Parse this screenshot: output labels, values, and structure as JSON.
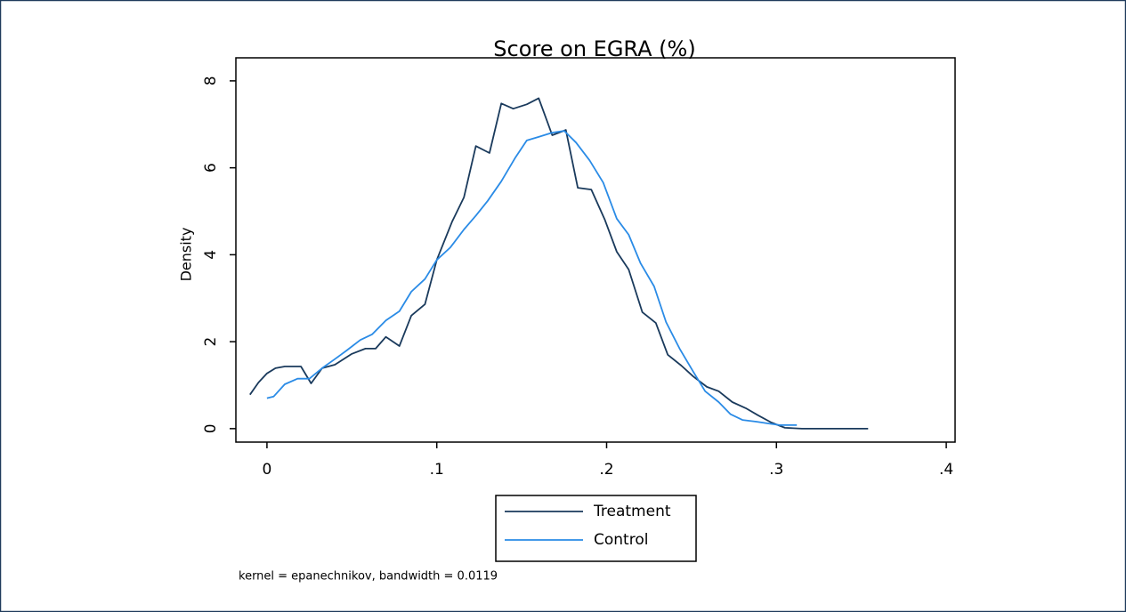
{
  "chart_data": {
    "type": "line",
    "title": "Score on EGRA (%)",
    "ylabel": "Density",
    "note": "kernel = epanechnikov, bandwidth = 0.0119",
    "xlim": [
      -0.0183,
      0.4052
    ],
    "ylim": [
      -0.31,
      8.53
    ],
    "xticks": [
      0,
      {
        "value": 0.1,
        "label": ".1"
      },
      {
        "value": 0.2,
        "label": ".2"
      },
      {
        "value": 0.3,
        "label": ".3"
      },
      {
        "value": 0.4,
        "label": ".4"
      }
    ],
    "yticks": [
      0,
      2,
      4,
      6,
      8
    ],
    "legend": "below",
    "series": [
      {
        "name": "Treatment",
        "color": "#1a3a5c",
        "x": [
          -0.01,
          -0.005,
          0,
          0.005,
          0.0105,
          0.02,
          0.026,
          0.0325,
          0.04,
          0.05,
          0.058,
          0.064,
          0.07,
          0.078,
          0.085,
          0.093,
          0.1,
          0.109,
          0.116,
          0.123,
          0.131,
          0.138,
          0.145,
          0.153,
          0.16,
          0.168,
          0.176,
          0.183,
          0.191,
          0.199,
          0.206,
          0.213,
          0.221,
          0.229,
          0.236,
          0.244,
          0.251,
          0.259,
          0.266,
          0.274,
          0.282,
          0.289,
          0.297,
          0.305,
          0.315,
          0.354
        ],
        "values": [
          0.78,
          1.06,
          1.27,
          1.39,
          1.43,
          1.43,
          1.04,
          1.39,
          1.47,
          1.72,
          1.84,
          1.84,
          2.11,
          1.9,
          2.6,
          2.86,
          3.88,
          4.76,
          5.32,
          6.5,
          6.34,
          7.48,
          7.36,
          7.46,
          7.6,
          6.75,
          6.87,
          5.54,
          5.5,
          4.8,
          4.07,
          3.66,
          2.68,
          2.43,
          1.7,
          1.45,
          1.2,
          0.96,
          0.86,
          0.61,
          0.47,
          0.31,
          0.14,
          0.02,
          0,
          0
        ]
      },
      {
        "name": "Control",
        "color": "#2a8be6",
        "x": [
          0,
          0.004,
          0.0105,
          0.018,
          0.025,
          0.0325,
          0.04,
          0.047,
          0.055,
          0.062,
          0.07,
          0.078,
          0.085,
          0.093,
          0.1,
          0.108,
          0.116,
          0.123,
          0.13,
          0.138,
          0.146,
          0.153,
          0.16,
          0.168,
          0.175,
          0.182,
          0.19,
          0.198,
          0.206,
          0.213,
          0.22,
          0.228,
          0.235,
          0.243,
          0.251,
          0.258,
          0.266,
          0.273,
          0.28,
          0.288,
          0.295,
          0.302,
          0.312
        ],
        "values": [
          0.7,
          0.74,
          1.02,
          1.15,
          1.15,
          1.39,
          1.6,
          1.8,
          2.04,
          2.17,
          2.49,
          2.7,
          3.15,
          3.44,
          3.88,
          4.17,
          4.58,
          4.9,
          5.24,
          5.69,
          6.22,
          6.63,
          6.71,
          6.81,
          6.85,
          6.58,
          6.17,
          5.66,
          4.83,
          4.46,
          3.8,
          3.27,
          2.45,
          1.84,
          1.31,
          0.86,
          0.61,
          0.33,
          0.2,
          0.16,
          0.12,
          0.08,
          0.08
        ]
      }
    ]
  }
}
